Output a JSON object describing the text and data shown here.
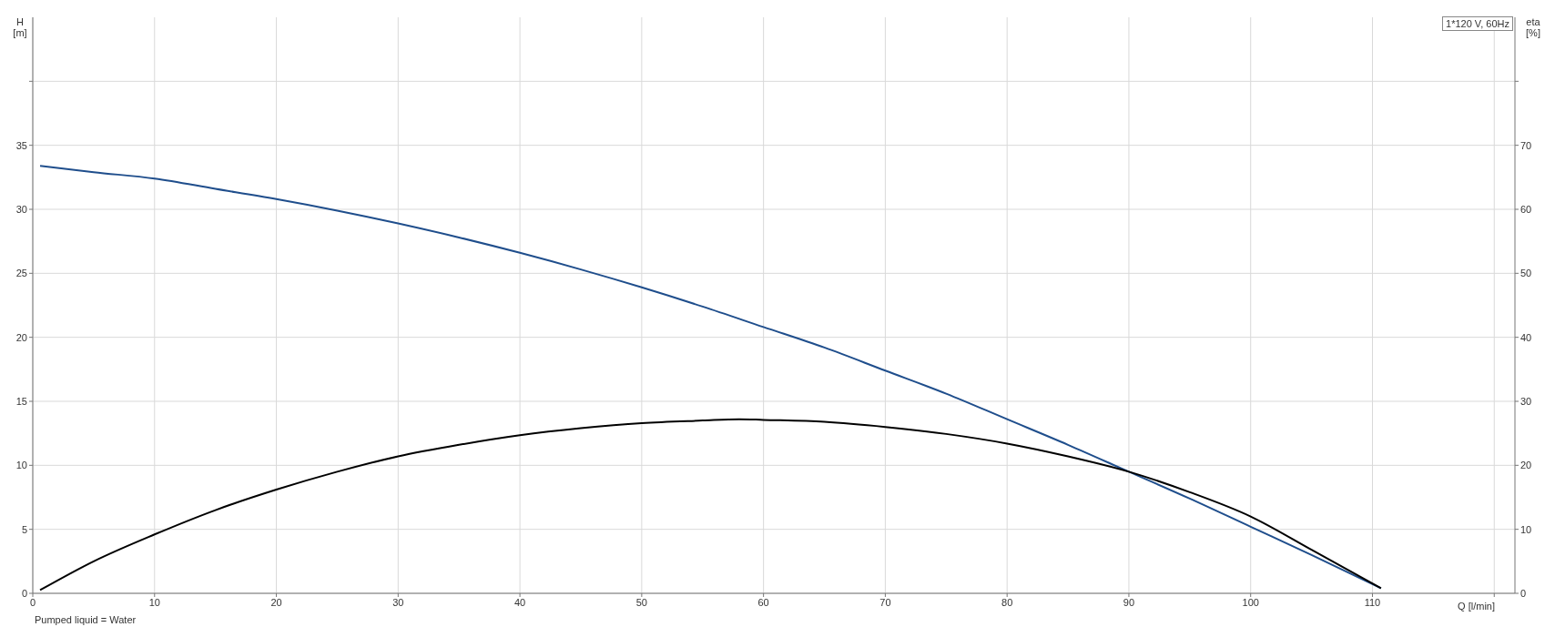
{
  "chart_data": {
    "type": "line",
    "xlabel": "Q [l/min]",
    "ylabel": "H [m]",
    "y2label": "eta [%]",
    "annotations": [
      "1*120 V, 60Hz",
      "Pumped liquid = Water"
    ],
    "xlim": [
      0,
      121.7
    ],
    "xticks": [
      0,
      10,
      20,
      30,
      40,
      50,
      60,
      70,
      80,
      90,
      100,
      110,
      {
        "value": 120,
        "label": null
      }
    ],
    "ylim": [
      0,
      45
    ],
    "yticks": [
      0,
      5,
      10,
      15,
      20,
      25,
      30,
      35,
      {
        "value": 40,
        "label": null
      }
    ],
    "y2lim": [
      0,
      90
    ],
    "y2ticks": [
      0,
      10,
      20,
      30,
      40,
      50,
      60,
      70,
      {
        "value": 80,
        "label": null
      }
    ],
    "grid": true,
    "legend": false,
    "series": [
      {
        "color": "#1f4e8c",
        "x": [
          0.6,
          5,
          10,
          15,
          20,
          25,
          30,
          35,
          40,
          45,
          50,
          55,
          60,
          65,
          70,
          75,
          80,
          85,
          90,
          95,
          100,
          105,
          110.7
        ],
        "values": [
          33.4,
          32.9,
          32.4,
          31.6,
          30.8,
          29.9,
          28.9,
          27.8,
          26.6,
          25.3,
          23.9,
          22.4,
          20.8,
          19.2,
          17.4,
          15.6,
          13.6,
          11.6,
          9.5,
          7.4,
          5.2,
          3.0,
          0.4
        ]
      },
      {
        "color": "#000000",
        "axis": "y2",
        "x": [
          0.6,
          5,
          10,
          15,
          20,
          25,
          30,
          35,
          40,
          45,
          50,
          55,
          58,
          60,
          65,
          70,
          75,
          80,
          85,
          90,
          95,
          100,
          105,
          110.7
        ],
        "values": [
          0.5,
          5.0,
          9.2,
          13.0,
          16.2,
          19.0,
          21.4,
          23.2,
          24.7,
          25.8,
          26.6,
          27.0,
          27.2,
          27.1,
          26.8,
          26.0,
          24.9,
          23.4,
          21.4,
          19.0,
          15.8,
          12.0,
          6.8,
          0.8
        ]
      }
    ]
  }
}
